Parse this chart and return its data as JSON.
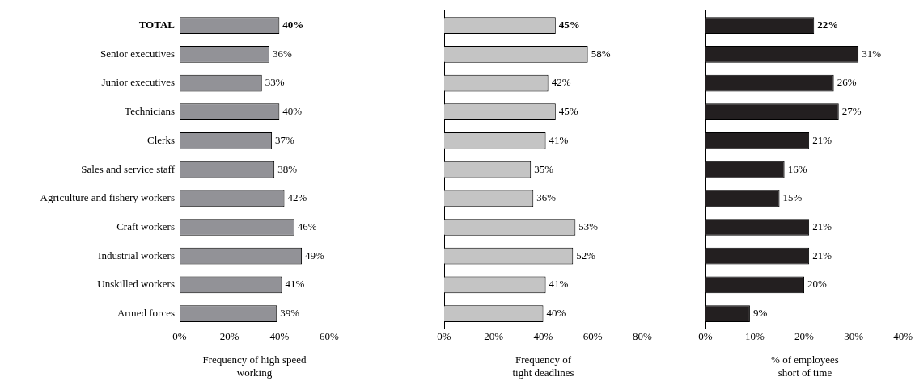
{
  "chart_data": [
    {
      "type": "bar",
      "orientation": "horizontal",
      "xlabel": "Frequency of high speed working",
      "categories": [
        "TOTAL",
        "Senior executives",
        "Junior executives",
        "Technicians",
        "Clerks",
        "Sales and service staff",
        "Agriculture and fishery workers",
        "Craft workers",
        "Industrial workers",
        "Unskilled workers",
        "Armed forces"
      ],
      "series": [
        {
          "color": "#929297",
          "values": [
            40,
            36,
            33,
            40,
            37,
            38,
            42,
            46,
            49,
            41,
            39
          ]
        }
      ],
      "value_labels": [
        "40%",
        "36%",
        "33%",
        "40%",
        "37%",
        "38%",
        "42%",
        "46%",
        "49%",
        "41%",
        "39%"
      ],
      "xlim": [
        0,
        60
      ],
      "xticks": [
        {
          "value": 0,
          "label": "0%"
        },
        {
          "value": 20,
          "label": "20%"
        },
        {
          "value": 40,
          "label": "40%"
        },
        {
          "value": 60,
          "label": "60%"
        }
      ],
      "grid": false,
      "legend": false
    },
    {
      "type": "bar",
      "orientation": "horizontal",
      "xlabel": "Frequency of tight deadlines",
      "categories": [
        null,
        null,
        null,
        null,
        null,
        null,
        null,
        null,
        null,
        null,
        null
      ],
      "series": [
        {
          "color": "#c4c4c4",
          "values": [
            45,
            58,
            42,
            45,
            41,
            35,
            36,
            53,
            52,
            41,
            40
          ]
        }
      ],
      "value_labels": [
        "45%",
        "58%",
        "42%",
        "45%",
        "41%",
        "35%",
        "36%",
        "53%",
        "52%",
        "41%",
        "40%"
      ],
      "xlim": [
        0,
        80
      ],
      "xticks": [
        {
          "value": 0,
          "label": "0%"
        },
        {
          "value": 20,
          "label": "20%"
        },
        {
          "value": 40,
          "label": "40%"
        },
        {
          "value": 60,
          "label": "60%"
        },
        {
          "value": 80,
          "label": "80%"
        }
      ],
      "grid": false,
      "legend": false
    },
    {
      "type": "bar",
      "orientation": "horizontal",
      "xlabel": "% of employees short of time",
      "categories": [
        null,
        null,
        null,
        null,
        null,
        null,
        null,
        null,
        null,
        null,
        null
      ],
      "series": [
        {
          "color": "#231f20",
          "values": [
            22,
            31,
            26,
            27,
            21,
            16,
            15,
            21,
            21,
            20,
            9
          ]
        }
      ],
      "value_labels": [
        "22%",
        "31%",
        "26%",
        "27%",
        "21%",
        "16%",
        "15%",
        "21%",
        "21%",
        "20%",
        "9%"
      ],
      "xlim": [
        0,
        40
      ],
      "xticks": [
        {
          "value": 0,
          "label": "0%"
        },
        {
          "value": 10,
          "label": "10%"
        },
        {
          "value": 20,
          "label": "20%"
        },
        {
          "value": 30,
          "label": "30%"
        },
        {
          "value": 40,
          "label": "40%"
        }
      ],
      "grid": false,
      "legend": false
    }
  ]
}
